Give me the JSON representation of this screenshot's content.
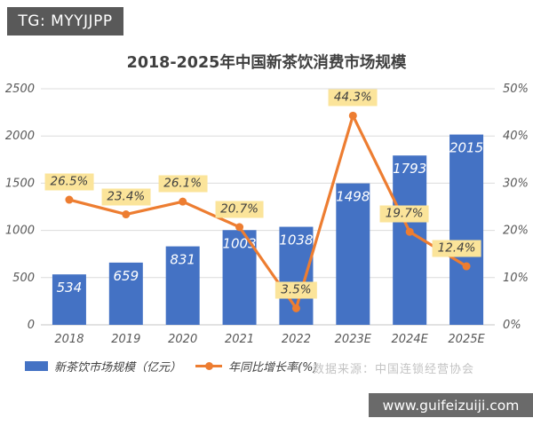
{
  "badge": {
    "text": "TG: MYYJJPP"
  },
  "header": {
    "title": "2018-2025年中国新茶饮消费市场规模"
  },
  "legend": {
    "items": [
      {
        "label": "新茶饮市场规模（亿元）"
      },
      {
        "label": "年同比增长率(%)"
      }
    ]
  },
  "footer": {
    "source": "数据来源：中国连锁经营协会",
    "watermark": "www.guifeizuiji.com"
  },
  "colors": {
    "bar": "#4472C4",
    "line": "#ED7D31",
    "label_bg": "#FBE49A",
    "axis_text": "#595959",
    "grid": "#DCDCDC",
    "axis_line": "#C6C6C6",
    "title_text": "#404040",
    "source_text": "#C3C3C3",
    "badge_bg": "#595959",
    "watermark_bg": "#6A6A6A"
  },
  "chart_data": {
    "type": "bar",
    "subtype": "bar-line-combo",
    "title": "2018-2025年中国新茶饮消费市场规模",
    "categories": [
      "2018",
      "2019",
      "2020",
      "2021",
      "2022",
      "2023E",
      "2024E",
      "2025E"
    ],
    "series": [
      {
        "name": "新茶饮市场规模（亿元）",
        "type": "bar",
        "axis": "left",
        "color": "#4472C4",
        "values": [
          534,
          659,
          831,
          1003,
          1038,
          1498,
          1793,
          2015
        ],
        "labels": [
          "534",
          "659",
          "831",
          "1003",
          "1038",
          "1498",
          "1793",
          "2015"
        ]
      },
      {
        "name": "年同比增长率(%)",
        "type": "line",
        "axis": "right",
        "color": "#ED7D31",
        "values": [
          26.5,
          23.4,
          26.1,
          20.7,
          3.5,
          44.3,
          19.7,
          12.4
        ],
        "labels": [
          "26.5%",
          "23.4%",
          "26.1%",
          "20.7%",
          "3.5%",
          "44.3%",
          "19.7%",
          "12.4%"
        ]
      }
    ],
    "left_axis": {
      "min": 0,
      "max": 2500,
      "step": 500,
      "ticks": [
        "0",
        "500",
        "1000",
        "1500",
        "2000",
        "2500"
      ]
    },
    "right_axis": {
      "min": 0,
      "max": 50,
      "step": 10,
      "ticks": [
        "0%",
        "10%",
        "20%",
        "30%",
        "40%",
        "50%"
      ]
    },
    "grid": true,
    "legend_position": "bottom-left",
    "source": "数据来源：中国连锁经营协会"
  }
}
